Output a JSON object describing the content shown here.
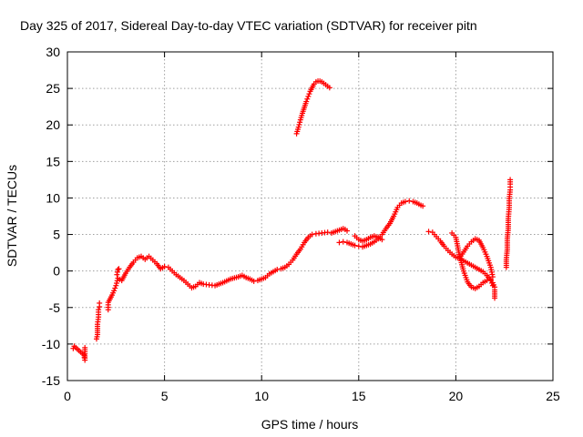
{
  "chart_data": {
    "type": "scatter",
    "title": "Day 325 of 2017, Sidereal Day-to-day VTEC variation (SDTVAR) for receiver pitn",
    "xlabel": "GPS time / hours",
    "ylabel": "SDTVAR / TECUs",
    "xlim": [
      0,
      25
    ],
    "ylim": [
      -15,
      30
    ],
    "xticks": [
      0,
      5,
      10,
      15,
      20,
      25
    ],
    "yticks": [
      -15,
      -10,
      -5,
      0,
      5,
      10,
      15,
      20,
      25,
      30
    ],
    "grid": true,
    "marker": "plus",
    "series_color": "#ff0000",
    "series": [
      {
        "name": "segment-1",
        "x": [
          0.3,
          0.35,
          0.85,
          0.9,
          0.9
        ],
        "y": [
          -10.6,
          -10.3,
          -11.5,
          -12.2,
          -10.5
        ]
      },
      {
        "name": "segment-2",
        "x": [
          1.5,
          1.55,
          1.55,
          1.6,
          1.6,
          1.65,
          1.65
        ],
        "y": [
          -9.3,
          -8.7,
          -7.3,
          -6.3,
          -5.3,
          -4.9,
          -4.4
        ]
      },
      {
        "name": "segment-3",
        "x": [
          2.1,
          2.1,
          2.2,
          2.3,
          2.4,
          2.5,
          2.6,
          2.8,
          3.0,
          3.2,
          3.4,
          3.6,
          3.8,
          4.0,
          4.2,
          4.4,
          4.6,
          4.8,
          5.0,
          5.2,
          5.4,
          5.6,
          5.8,
          6.0,
          6.2,
          6.4,
          6.6,
          6.8,
          7.0,
          7.3,
          7.6,
          8.0,
          8.4,
          8.8,
          9.0,
          9.2,
          9.4,
          9.6,
          9.8,
          10.0,
          10.2,
          10.4,
          10.6,
          10.8,
          11.0,
          11.2,
          11.4,
          11.6,
          11.8,
          12.0,
          12.2,
          12.4,
          12.6
        ],
        "y": [
          -5.3,
          -4.3,
          -3.8,
          -3.3,
          -2.7,
          -2.0,
          -1.0,
          -1.3,
          -0.3,
          0.5,
          1.2,
          1.8,
          2.0,
          1.6,
          2.0,
          1.5,
          1.0,
          0.3,
          0.6,
          0.5,
          0.0,
          -0.5,
          -0.9,
          -1.3,
          -1.8,
          -2.3,
          -2.1,
          -1.6,
          -1.8,
          -1.9,
          -2.0,
          -1.6,
          -1.1,
          -0.8,
          -0.6,
          -0.9,
          -1.1,
          -1.4,
          -1.3,
          -1.1,
          -0.9,
          -0.4,
          -0.1,
          0.2,
          0.3,
          0.5,
          0.9,
          1.5,
          2.3,
          3.0,
          3.9,
          4.6,
          5.0
        ]
      },
      {
        "name": "segment-4",
        "x": [
          2.55,
          2.6,
          2.65
        ],
        "y": [
          -0.5,
          0.2,
          0.3
        ]
      },
      {
        "name": "segment-5",
        "x": [
          11.8,
          11.9,
          12.0,
          12.1,
          12.2,
          12.3,
          12.4,
          12.5,
          12.6,
          12.7,
          12.8,
          12.9,
          13.0,
          13.1,
          13.2,
          13.3,
          13.4,
          13.5
        ],
        "y": [
          18.8,
          19.7,
          20.7,
          21.6,
          22.4,
          23.2,
          23.9,
          24.6,
          25.1,
          25.6,
          25.9,
          26.0,
          26.0,
          25.9,
          25.7,
          25.5,
          25.3,
          25.1
        ]
      },
      {
        "name": "segment-6",
        "x": [
          12.8,
          13.1,
          13.4,
          13.6,
          14.0,
          14.2,
          14.3,
          14.4
        ],
        "y": [
          5.1,
          5.2,
          5.3,
          5.2,
          5.6,
          5.8,
          5.7,
          5.5
        ]
      },
      {
        "name": "segment-7",
        "x": [
          14.0,
          14.2,
          14.4,
          14.6,
          14.8,
          15.0,
          15.2,
          15.4,
          15.6,
          15.8,
          16.0,
          16.2,
          16.4,
          16.6,
          16.8,
          17.0,
          17.2,
          17.4,
          17.6,
          17.8,
          18.0,
          18.2,
          18.3
        ],
        "y": [
          3.9,
          4.0,
          3.9,
          3.7,
          3.5,
          3.4,
          3.3,
          3.5,
          3.7,
          4.0,
          4.4,
          5.0,
          5.8,
          6.5,
          7.5,
          8.7,
          9.3,
          9.5,
          9.6,
          9.5,
          9.3,
          9.0,
          8.9
        ]
      },
      {
        "name": "segment-8",
        "x": [
          14.8,
          15.0,
          15.2,
          15.4,
          15.6,
          15.8,
          16.0,
          16.2
        ],
        "y": [
          4.8,
          4.3,
          4.1,
          4.3,
          4.6,
          4.8,
          4.6,
          4.3
        ]
      },
      {
        "name": "segment-9",
        "x": [
          18.6,
          18.8,
          19.0,
          19.2,
          19.4,
          19.6,
          19.8,
          20.0,
          20.2,
          20.4,
          20.6,
          20.8,
          21.0,
          21.2,
          21.4,
          21.6,
          21.8,
          21.9
        ],
        "y": [
          5.4,
          5.3,
          4.7,
          4.1,
          3.4,
          2.8,
          2.3,
          1.9,
          1.7,
          1.4,
          1.1,
          0.8,
          0.5,
          0.2,
          -0.1,
          -0.6,
          -1.3,
          -2.0
        ]
      },
      {
        "name": "segment-10",
        "x": [
          19.8,
          20.0,
          20.2,
          20.4,
          20.6,
          20.8,
          21.0,
          21.2,
          21.4,
          21.6,
          21.8,
          21.9,
          22.0
        ],
        "y": [
          5.2,
          4.6,
          2.0,
          0.0,
          -1.5,
          -2.2,
          -2.4,
          -2.1,
          -1.6,
          -1.3,
          -1.2,
          -1.6,
          -2.2
        ]
      },
      {
        "name": "segment-11",
        "x": [
          20.2,
          20.4,
          20.6,
          20.8,
          21.0,
          21.2,
          21.4,
          21.6,
          21.8,
          21.9
        ],
        "y": [
          1.8,
          2.6,
          3.4,
          4.0,
          4.4,
          4.2,
          3.2,
          2.0,
          0.5,
          -0.8
        ]
      },
      {
        "name": "segment-12",
        "x": [
          22.0,
          22.0
        ],
        "y": [
          -2.6,
          -3.7
        ]
      },
      {
        "name": "segment-13",
        "x": [
          22.6,
          22.6,
          22.65,
          22.65,
          22.7,
          22.7,
          22.75,
          22.75,
          22.8,
          22.8,
          22.8
        ],
        "y": [
          0.5,
          1.6,
          3.0,
          4.4,
          5.8,
          7.2,
          8.7,
          9.9,
          11.1,
          11.9,
          12.5
        ]
      }
    ]
  }
}
